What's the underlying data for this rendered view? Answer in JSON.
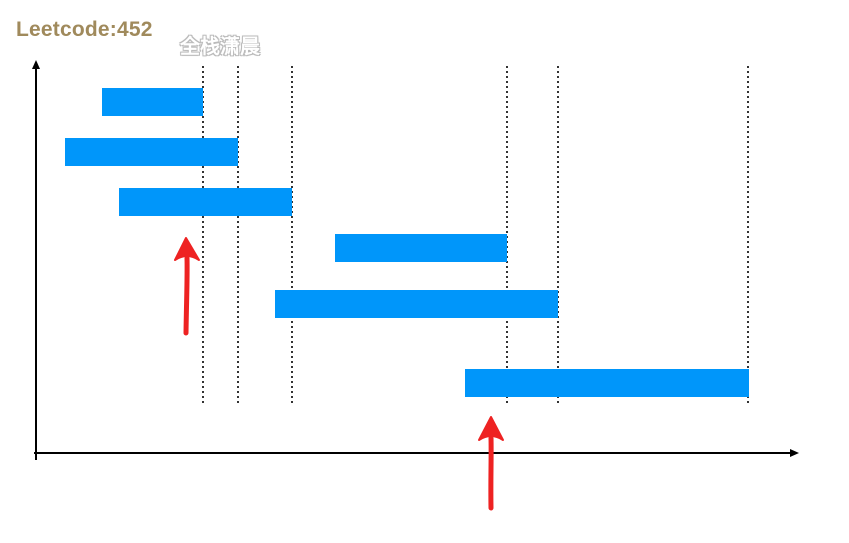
{
  "header": {
    "title": "Leetcode:452",
    "watermark": "全栈潇晨"
  },
  "colors": {
    "interval_bar": "#0096fa",
    "axis": "#000000",
    "arrow": "#ee2222",
    "title": "#a08a5c"
  },
  "icons": {
    "arrow": "upward red hand-drawn arrow"
  }
}
